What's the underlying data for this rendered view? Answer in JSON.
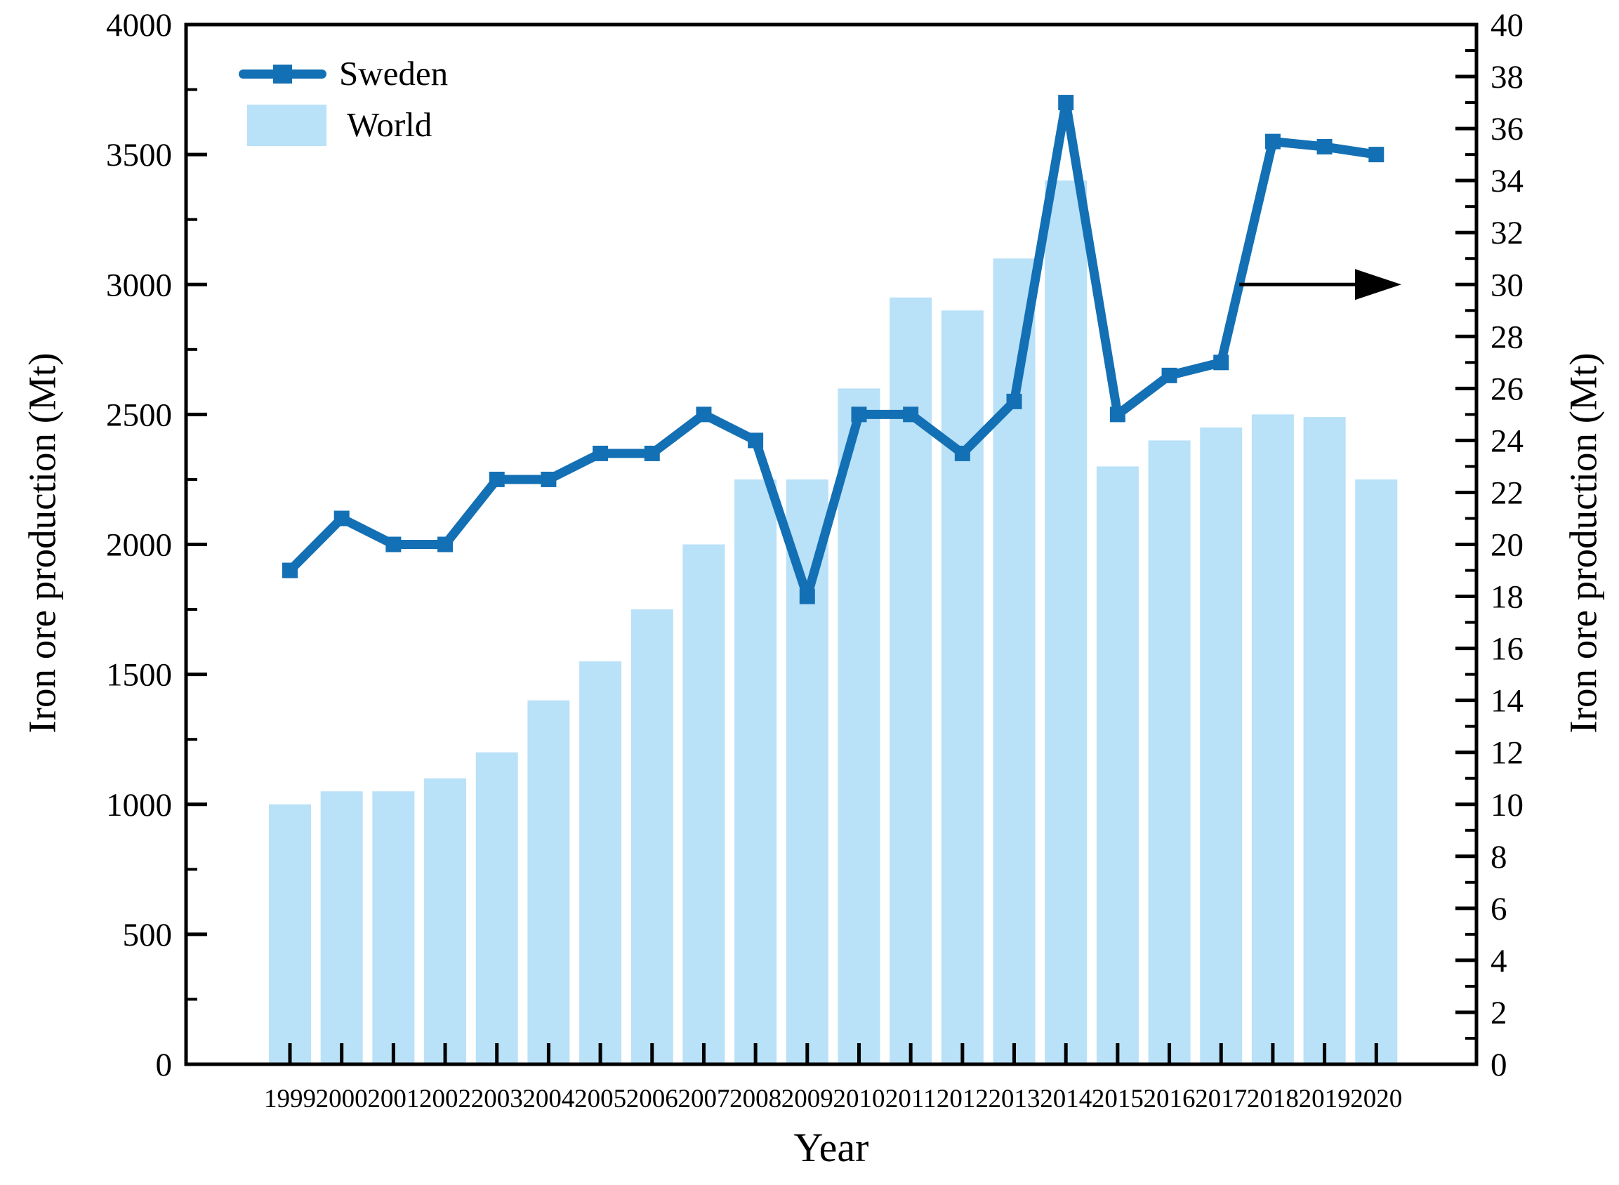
{
  "chart_data": {
    "type": "bar",
    "subtype": "dual-axis bar + line combo",
    "categories": [
      "1999",
      "2000",
      "2001",
      "2002",
      "2003",
      "2004",
      "2005",
      "2006",
      "2007",
      "2008",
      "2009",
      "2010",
      "2011",
      "2012",
      "2013",
      "2014",
      "2015",
      "2016",
      "2017",
      "2018",
      "2019",
      "2020"
    ],
    "series": [
      {
        "name": "Sweden",
        "type": "line",
        "axis": "right",
        "color": "#1470b4",
        "marker": "square",
        "values": [
          19,
          21,
          20,
          20,
          22.5,
          22.5,
          23.5,
          23.5,
          25,
          24,
          18,
          25,
          25,
          23.5,
          25.5,
          37,
          25,
          26.5,
          27,
          35.5,
          35.3,
          35
        ]
      },
      {
        "name": "World",
        "type": "bar",
        "axis": "left",
        "color": "#b9e1f8",
        "values": [
          1000,
          1050,
          1050,
          1100,
          1200,
          1400,
          1550,
          1750,
          2000,
          2250,
          2250,
          2600,
          2950,
          2900,
          3100,
          3400,
          2300,
          2400,
          2450,
          2500,
          2490,
          2250
        ]
      }
    ],
    "left_axis": {
      "label": "Iron ore production (Mt)",
      "min": 0,
      "max": 4000,
      "major_step": 500,
      "minor_step": 250
    },
    "right_axis": {
      "label": "Iron ore production (Mt)",
      "min": 0,
      "max": 40,
      "major_step": 2,
      "minor_step": 1
    },
    "x_axis": {
      "label": "Year"
    },
    "legend": {
      "position": "top-left-inside",
      "entries": [
        "Sweden",
        "World"
      ]
    },
    "annotation_arrow": {
      "points_to": "right-axis",
      "at_right_axis_value": 30
    },
    "grid": "off",
    "spine_color": "#000000"
  }
}
